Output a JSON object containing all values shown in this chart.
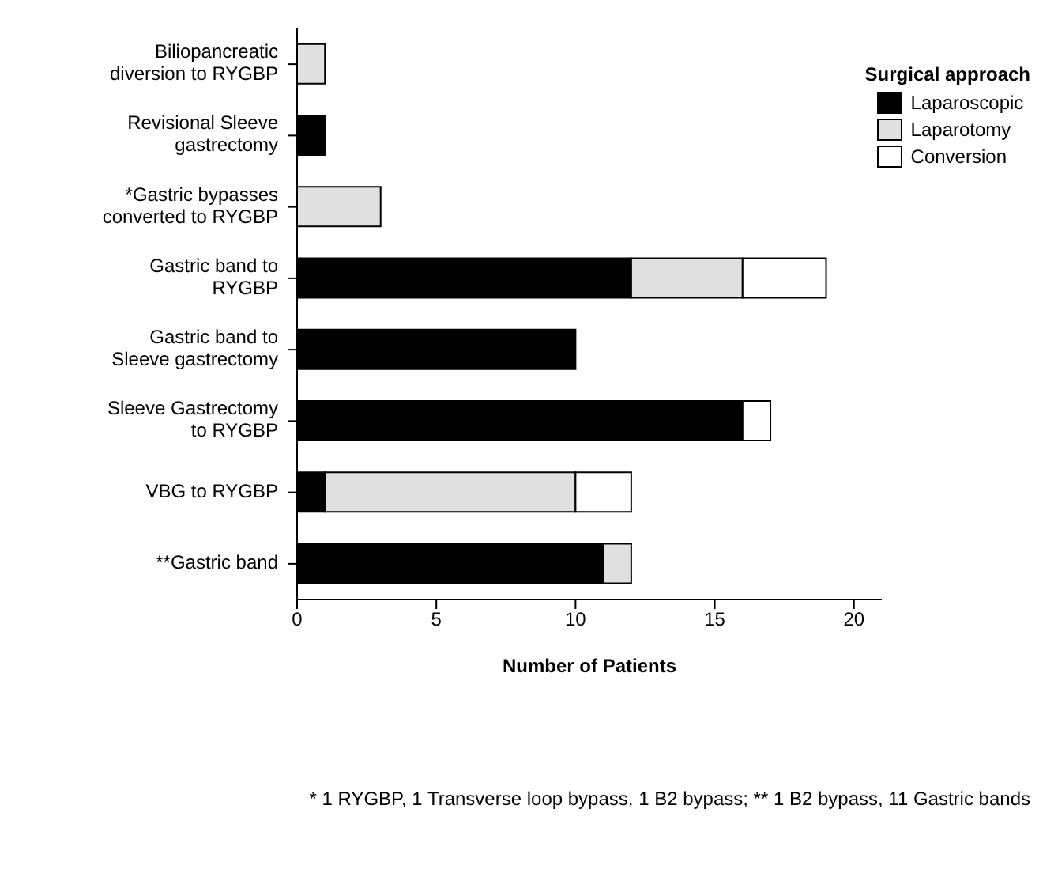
{
  "chart_data": {
    "type": "bar",
    "orientation": "horizontal",
    "stacked": true,
    "categories": [
      "Biliopancreatic diversion to RYGBP",
      "Revisional Sleeve gastrectomy",
      "*Gastric bypasses converted to RYGBP",
      "Gastric band to RYGBP",
      "Gastric band to Sleeve gastrectomy",
      "Sleeve Gastrectomy to RYGBP",
      "VBG to RYGBP",
      "**Gastric band"
    ],
    "series": [
      {
        "name": "Laparoscopic",
        "color": "#000000",
        "values": [
          0,
          1,
          0,
          12,
          10,
          16,
          1,
          11
        ]
      },
      {
        "name": "Laparotomy",
        "color": "#e0e0e0",
        "values": [
          1,
          0,
          3,
          4,
          0,
          0,
          9,
          1
        ]
      },
      {
        "name": "Conversion",
        "color": "#ffffff",
        "values": [
          0,
          0,
          0,
          3,
          0,
          1,
          2,
          0
        ]
      }
    ],
    "xlabel": "Number of Patients",
    "xlim": [
      0,
      21
    ],
    "xticks": [
      0,
      5,
      10,
      15,
      20
    ],
    "legend": "top right",
    "legend_title": "Surgical approach",
    "grid": false,
    "annotations": [
      "* 1 RYGBP, 1 Transverse loop bypass, 1 B2 bypass; ** 1 B2 bypass, 11 Gastric bands"
    ]
  }
}
